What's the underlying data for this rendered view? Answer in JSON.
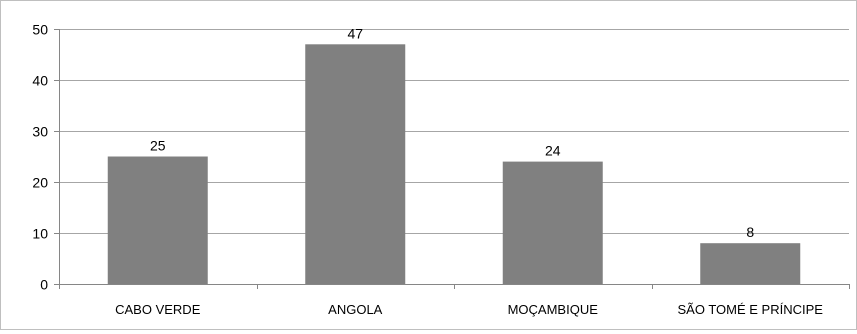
{
  "chart_data": {
    "type": "bar",
    "categories": [
      "CABO VERDE",
      "ANGOLA",
      "MOÇAMBIQUE",
      "SÃO TOMÉ E PRÍNCIPE"
    ],
    "values": [
      25,
      47,
      24,
      8
    ],
    "data_labels": [
      "25",
      "47",
      "24",
      "8"
    ],
    "title": "",
    "xlabel": "",
    "ylabel": "",
    "ylim": [
      0,
      50
    ],
    "yticks": [
      0,
      10,
      20,
      30,
      40,
      50
    ],
    "ytick_labels": [
      "0",
      "10",
      "20",
      "30",
      "40",
      "50"
    ],
    "grid": true,
    "legend": "none",
    "colors": {
      "bar": "#808080",
      "grid": "#a6a6a6",
      "axis": "#868686",
      "frame": "#bfbfbf"
    }
  }
}
